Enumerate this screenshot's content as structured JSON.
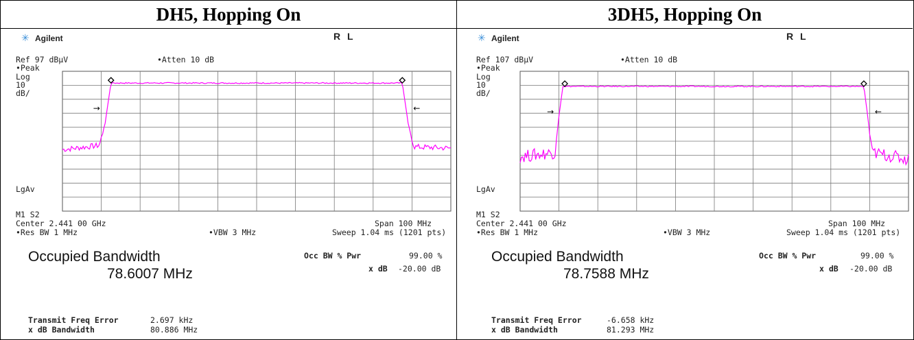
{
  "panels": [
    {
      "title": "DH5, Hopping On",
      "brand": "Agilent",
      "mode": "R L",
      "ref": "Ref 97 dBµV",
      "atten": "•Atten 10 dB",
      "left_labels": [
        "•Peak",
        "Log",
        "10",
        "dB/"
      ],
      "lgav": "LgAv",
      "m1s2": "M1  S2",
      "center": "Center 2.441 00 GHz",
      "span": "Span 100 MHz",
      "res_bw": "•Res BW 1 MHz",
      "vbw": "•VBW 3 MHz",
      "sweep": "Sweep 1.04 ms (1201 pts)",
      "occ_label": "Occupied Bandwidth",
      "occ_value": "78.6007 MHz",
      "occ_pwr_label": "Occ BW % Pwr",
      "occ_pwr_value": "99.00 %",
      "xdb_label": "x dB",
      "xdb_value": "-20.00 dB",
      "tfe_label": "Transmit Freq Error",
      "tfe_value": "2.697 kHz",
      "xdb_bw_label": "x dB Bandwidth",
      "xdb_bw_value": "80.886 MHz"
    },
    {
      "title": "3DH5, Hopping On",
      "brand": "Agilent",
      "mode": "R L",
      "ref": "Ref 107 dBµV",
      "atten": "•Atten 10 dB",
      "left_labels": [
        "•Peak",
        "Log",
        "10",
        "dB/"
      ],
      "lgav": "LgAv",
      "m1s2": "M1  S2",
      "center": "Center 2.441 00 GHz",
      "span": "Span 100 MHz",
      "res_bw": "•Res BW 1 MHz",
      "vbw": "•VBW 3 MHz",
      "sweep": "Sweep 1.04 ms (1201 pts)",
      "occ_label": "Occupied Bandwidth",
      "occ_value": "78.7588 MHz",
      "occ_pwr_label": "Occ BW % Pwr",
      "occ_pwr_value": "99.00 %",
      "xdb_label": "x dB",
      "xdb_value": "-20.00 dB",
      "tfe_label": "Transmit Freq Error",
      "tfe_value": "-6.658 kHz",
      "xdb_bw_label": "x dB Bandwidth",
      "xdb_bw_value": "81.293 MHz"
    }
  ],
  "chart_data": [
    {
      "type": "line",
      "ref_level_dbuv": 97,
      "scale_db_per_div": 10,
      "ylim_dbuv": [
        -3,
        97
      ],
      "xlim_ghz": [
        2.391,
        2.491
      ],
      "grid": true,
      "trace_color": "#ff00ff",
      "series": [
        {
          "x_ghz": [
            2.391,
            2.4005,
            2.402,
            2.4035,
            2.441,
            2.4785,
            2.48,
            2.4815,
            2.491
          ],
          "y_dbuv": [
            41,
            44,
            60,
            88.6,
            88.6,
            88.6,
            60,
            43,
            42
          ]
        }
      ],
      "markers_ghz": [
        2.4035,
        2.4785
      ]
    },
    {
      "type": "line",
      "ref_level_dbuv": 107,
      "scale_db_per_div": 10,
      "ylim_dbuv": [
        7,
        107
      ],
      "xlim_ghz": [
        2.391,
        2.491
      ],
      "grid": true,
      "trace_color": "#ff00ff",
      "series": [
        {
          "x_ghz": [
            2.391,
            2.4,
            2.401,
            2.402,
            2.441,
            2.4795,
            2.4805,
            2.4815,
            2.491
          ],
          "y_dbuv": [
            46,
            49,
            75,
            96.2,
            96.2,
            96.2,
            75,
            49,
            44
          ]
        }
      ],
      "markers_ghz": [
        2.4025,
        2.4795
      ]
    }
  ]
}
